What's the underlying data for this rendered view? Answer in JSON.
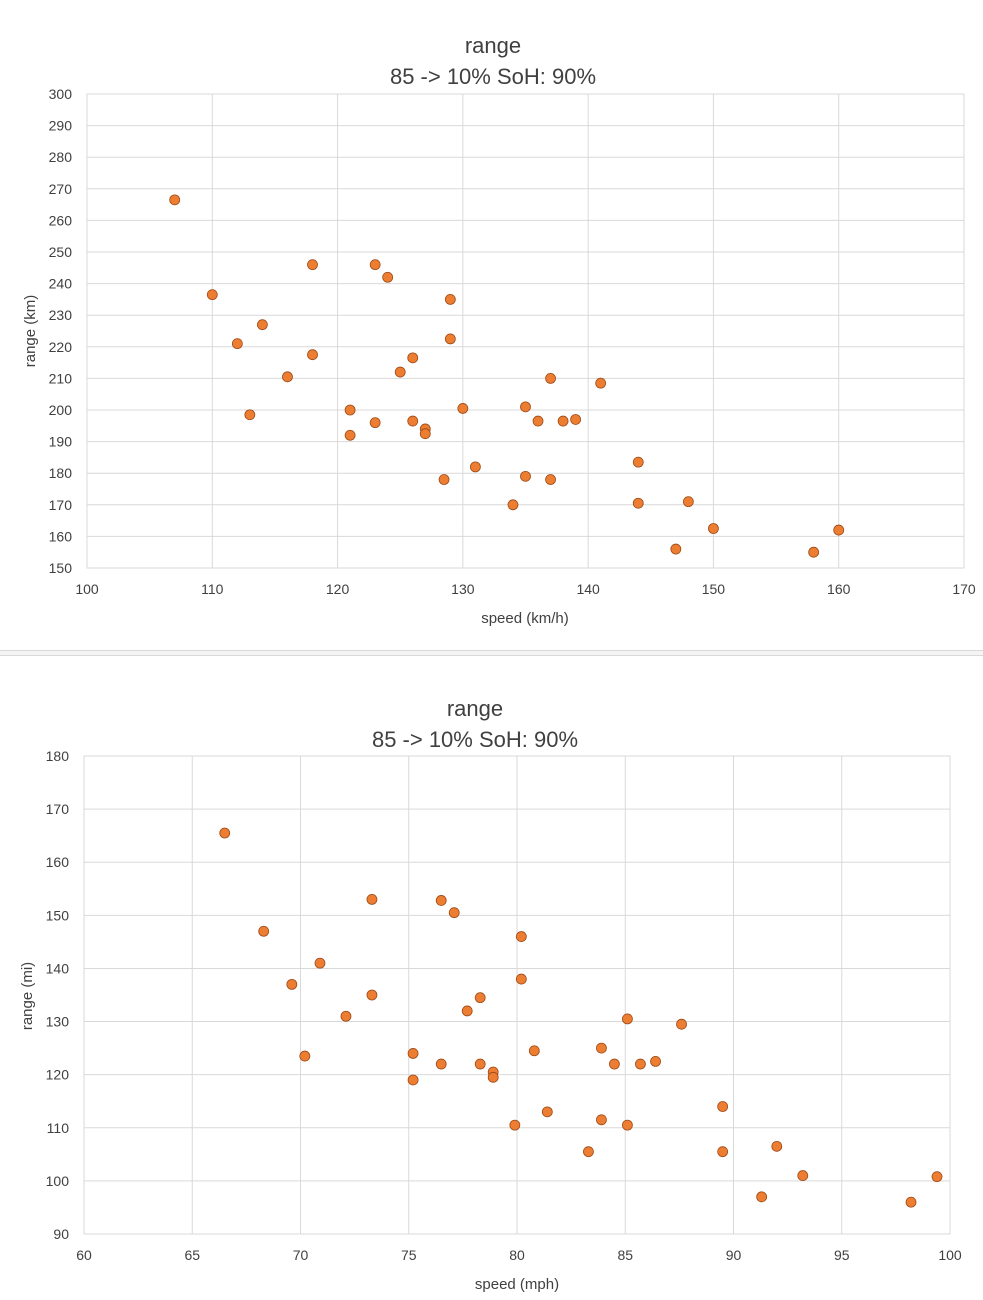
{
  "chart_data": [
    {
      "type": "scatter",
      "title": "range",
      "subtitle": "85 -> 10%    SoH: 90%",
      "xlabel": "speed (km/h)",
      "ylabel": "range (km)",
      "xlim": [
        100,
        170
      ],
      "ylim": [
        150,
        300
      ],
      "xticks": [
        "100",
        "110",
        "120",
        "130",
        "140",
        "150",
        "160",
        "170"
      ],
      "yticks": [
        "150",
        "160",
        "170",
        "180",
        "190",
        "200",
        "210",
        "220",
        "230",
        "240",
        "250",
        "260",
        "270",
        "280",
        "290",
        "300"
      ],
      "grid": true,
      "marker_color": "#ED7D31",
      "series": [
        {
          "points": [
            [
              107,
              266.5
            ],
            [
              110,
              236.5
            ],
            [
              112,
              221
            ],
            [
              113,
              198.5
            ],
            [
              114,
              227
            ],
            [
              116,
              210.5
            ],
            [
              118,
              246
            ],
            [
              118,
              217.5
            ],
            [
              121,
              200
            ],
            [
              121,
              192
            ],
            [
              123,
              246
            ],
            [
              123,
              196
            ],
            [
              124,
              242
            ],
            [
              125,
              212
            ],
            [
              126,
              216.5
            ],
            [
              126,
              196.5
            ],
            [
              127,
              194
            ],
            [
              127,
              192.5
            ],
            [
              128.5,
              178
            ],
            [
              129,
              235
            ],
            [
              129,
              222.5
            ],
            [
              130,
              200.5
            ],
            [
              131,
              182
            ],
            [
              134,
              170
            ],
            [
              135,
              201
            ],
            [
              135,
              179
            ],
            [
              136,
              196.5
            ],
            [
              137,
              210
            ],
            [
              137,
              178
            ],
            [
              138,
              196.5
            ],
            [
              139,
              197
            ],
            [
              141,
              208.5
            ],
            [
              144,
              183.5
            ],
            [
              144,
              170.5
            ],
            [
              147,
              156
            ],
            [
              148,
              171
            ],
            [
              150,
              162.5
            ],
            [
              158,
              155
            ],
            [
              160,
              162
            ]
          ]
        }
      ]
    },
    {
      "type": "scatter",
      "title": "range",
      "subtitle": "85 -> 10%    SoH: 90%",
      "xlabel": "speed (mph)",
      "ylabel": "range (mi)",
      "xlim": [
        60,
        100
      ],
      "ylim": [
        90,
        180
      ],
      "xticks": [
        "60",
        "65",
        "70",
        "75",
        "80",
        "85",
        "90",
        "95",
        "100"
      ],
      "yticks": [
        "90",
        "100",
        "110",
        "120",
        "130",
        "140",
        "150",
        "160",
        "170",
        "180"
      ],
      "grid": true,
      "marker_color": "#ED7D31",
      "series": [
        {
          "points": [
            [
              66.5,
              165.5
            ],
            [
              68.3,
              147
            ],
            [
              69.6,
              137
            ],
            [
              70.2,
              123.5
            ],
            [
              70.9,
              141
            ],
            [
              72.1,
              131
            ],
            [
              73.3,
              153
            ],
            [
              73.3,
              135
            ],
            [
              75.2,
              124
            ],
            [
              75.2,
              119
            ],
            [
              76.5,
              152.8
            ],
            [
              76.5,
              122
            ],
            [
              77.1,
              150.5
            ],
            [
              77.7,
              132
            ],
            [
              78.3,
              134.5
            ],
            [
              78.3,
              122
            ],
            [
              78.9,
              120.5
            ],
            [
              78.9,
              119.5
            ],
            [
              79.9,
              110.5
            ],
            [
              80.2,
              146
            ],
            [
              80.2,
              138
            ],
            [
              80.8,
              124.5
            ],
            [
              81.4,
              113
            ],
            [
              83.3,
              105.5
            ],
            [
              83.9,
              125
            ],
            [
              83.9,
              111.5
            ],
            [
              84.5,
              122
            ],
            [
              85.1,
              130.5
            ],
            [
              85.1,
              110.5
            ],
            [
              85.7,
              122
            ],
            [
              86.4,
              122.5
            ],
            [
              87.6,
              129.5
            ],
            [
              89.5,
              114
            ],
            [
              89.5,
              105.5
            ],
            [
              91.3,
              97
            ],
            [
              92,
              106.5
            ],
            [
              93.2,
              101
            ],
            [
              98.2,
              96
            ],
            [
              99.4,
              100.8
            ]
          ]
        }
      ]
    }
  ]
}
